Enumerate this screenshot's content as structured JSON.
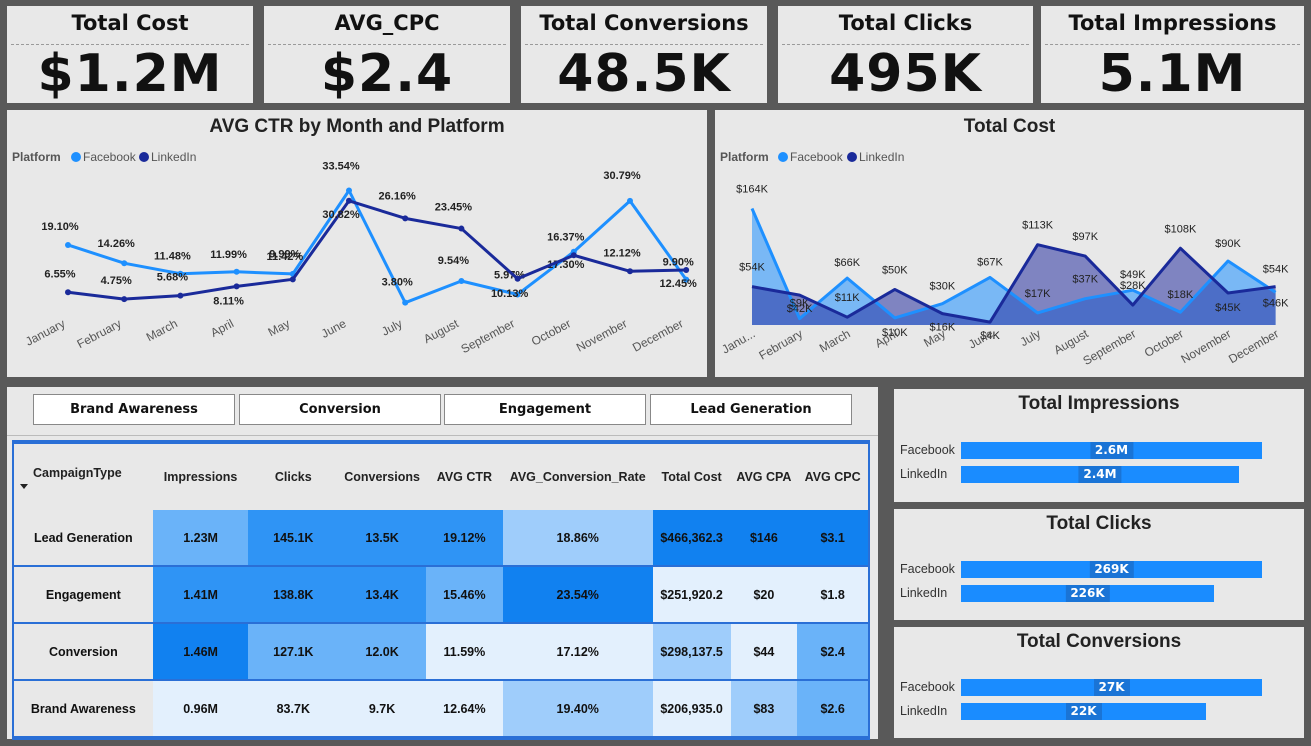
{
  "kpis": [
    {
      "title": "Total Cost",
      "value": "$1.2M"
    },
    {
      "title": "AVG_CPC",
      "value": "$2.4"
    },
    {
      "title": "Total Conversions",
      "value": "48.5K"
    },
    {
      "title": "Total Clicks",
      "value": "495K"
    },
    {
      "title": "Total Impressions",
      "value": "5.1M"
    }
  ],
  "legend": {
    "title": "Platform",
    "facebook": "Facebook",
    "linkedin": "LinkedIn"
  },
  "colors": {
    "facebook": "#1e90ff",
    "linkedin": "#1a2a9a",
    "bar": "#1a8cff"
  },
  "chart_data": [
    {
      "type": "line",
      "title": "AVG CTR by Month and Platform",
      "categories": [
        "January",
        "February",
        "March",
        "April",
        "May",
        "June",
        "July",
        "August",
        "September",
        "October",
        "November",
        "December"
      ],
      "ylim": [
        0,
        35
      ],
      "series": [
        {
          "name": "Facebook",
          "values": [
            19.1,
            14.26,
            11.48,
            11.99,
            11.42,
            33.54,
            3.8,
            9.54,
            5.97,
            17.3,
            30.79,
            9.9
          ],
          "labels": [
            "19.10%",
            "14.26%",
            "11.48%",
            "11.99%",
            "11.42%",
            "33.54%",
            "3.80%",
            "9.54%",
            "5.97%",
            "17.30%",
            "30.79%",
            "9.90%"
          ]
        },
        {
          "name": "LinkedIn",
          "values": [
            6.55,
            4.75,
            5.68,
            8.11,
            9.99,
            30.82,
            26.16,
            23.45,
            10.13,
            16.37,
            12.12,
            12.45
          ],
          "labels": [
            "6.55%",
            "4.75%",
            "5.68%",
            "8.11%",
            "9.99%",
            "30.82%",
            "26.16%",
            "23.45%",
            "10.13%",
            "16.37%",
            "12.12%",
            "12.45%"
          ]
        }
      ]
    },
    {
      "type": "area",
      "title": "Total Cost",
      "categories": [
        "January",
        "February",
        "March",
        "April",
        "May",
        "June",
        "July",
        "August",
        "September",
        "October",
        "November",
        "December"
      ],
      "ylim": [
        0,
        190000
      ],
      "series": [
        {
          "name": "Facebook",
          "values": [
            164000,
            9000,
            66000,
            10000,
            30000,
            67000,
            17000,
            37000,
            49000,
            18000,
            90000,
            46000
          ],
          "labels": [
            "$164K",
            "$9K",
            "$66K",
            "$10K",
            "$30K",
            "$67K",
            "$17K",
            "$37K",
            "$49K",
            "$18K",
            "$90K",
            "$46K"
          ]
        },
        {
          "name": "LinkedIn",
          "values": [
            54000,
            42000,
            11000,
            50000,
            16000,
            4000,
            113000,
            97000,
            28000,
            108000,
            45000,
            54000
          ],
          "labels": [
            "$54K",
            "$42K",
            "$11K",
            "$50K",
            "$16K",
            "$4K",
            "$113K",
            "$97K",
            "$28K",
            "$108K",
            "$45K",
            "$54K"
          ]
        }
      ]
    },
    {
      "type": "bar",
      "title": "Total Impressions",
      "categories": [
        "Facebook",
        "LinkedIn"
      ],
      "values": [
        2.6,
        2.4
      ],
      "labels": [
        "2.6M",
        "2.4M"
      ]
    },
    {
      "type": "bar",
      "title": "Total Clicks",
      "categories": [
        "Facebook",
        "LinkedIn"
      ],
      "values": [
        269,
        226
      ],
      "labels": [
        "269K",
        "226K"
      ]
    },
    {
      "type": "bar",
      "title": "Total Conversions",
      "categories": [
        "Facebook",
        "LinkedIn"
      ],
      "values": [
        27,
        22
      ],
      "labels": [
        "27K",
        "22K"
      ]
    }
  ],
  "slicer": [
    "Brand Awareness",
    "Conversion",
    "Engagement",
    "Lead Generation"
  ],
  "matrix": {
    "columns": [
      "CampaignType",
      "Impressions",
      "Clicks",
      "Conversions",
      "AVG CTR",
      "AVG_Conversion_Rate",
      "Total Cost",
      "AVG CPA",
      "AVG CPC"
    ],
    "rows": [
      {
        "cells": [
          "Lead Generation",
          "1.23M",
          "145.1K",
          "13.5K",
          "19.12%",
          "18.86%",
          "$466,362.3",
          "$146",
          "$3.1"
        ],
        "shades": [
          0,
          2,
          3,
          3,
          3,
          1,
          4,
          4,
          4
        ]
      },
      {
        "cells": [
          "Engagement",
          "1.41M",
          "138.8K",
          "13.4K",
          "15.46%",
          "23.54%",
          "$251,920.2",
          "$20",
          "$1.8"
        ],
        "shades": [
          0,
          3,
          3,
          3,
          2,
          4,
          0,
          0,
          0
        ]
      },
      {
        "cells": [
          "Conversion",
          "1.46M",
          "127.1K",
          "12.0K",
          "11.59%",
          "17.12%",
          "$298,137.5",
          "$44",
          "$2.4"
        ],
        "shades": [
          0,
          4,
          2,
          2,
          0,
          0,
          1,
          0,
          2
        ]
      },
      {
        "cells": [
          "Brand Awareness",
          "0.96M",
          "83.7K",
          "9.7K",
          "12.64%",
          "19.40%",
          "$206,935.0",
          "$83",
          "$2.6"
        ],
        "shades": [
          0,
          0,
          0,
          0,
          0,
          1,
          0,
          1,
          2
        ]
      }
    ],
    "shade_colors": [
      "#e3f0fd",
      "#9fcdfb",
      "#6ab3f9",
      "#2f94f5",
      "#1181f0"
    ]
  }
}
